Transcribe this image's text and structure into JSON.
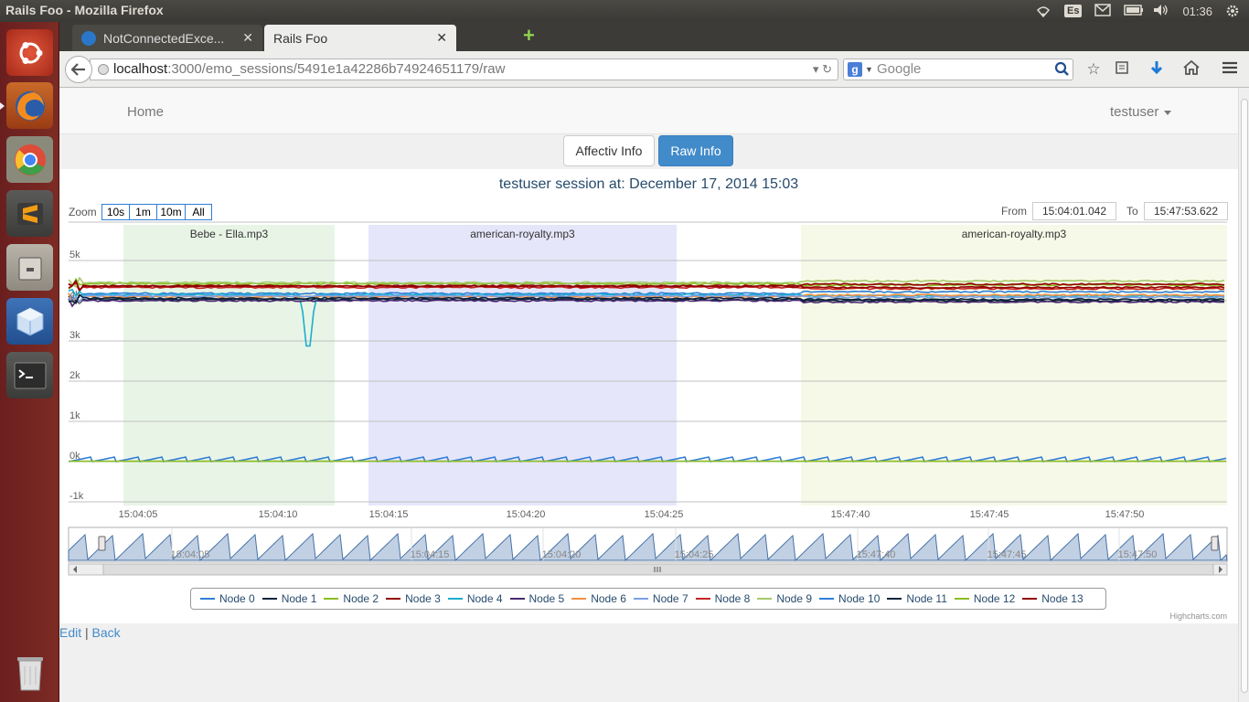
{
  "window": {
    "title": "Rails Foo - Mozilla Firefox"
  },
  "tray": {
    "keyboard": "Es",
    "clock": "01:36"
  },
  "launcher": {
    "items": [
      {
        "name": "ubuntu-dash-icon"
      },
      {
        "name": "firefox-icon"
      },
      {
        "name": "chrome-icon"
      },
      {
        "name": "sublime-text-icon"
      },
      {
        "name": "file-cabinet-icon"
      },
      {
        "name": "virtualbox-icon"
      },
      {
        "name": "terminal-icon"
      },
      {
        "name": "trash-icon"
      }
    ]
  },
  "tabs": [
    {
      "label": "NotConnectedExce...",
      "active": false
    },
    {
      "label": "Rails Foo",
      "active": true
    }
  ],
  "urlbar": {
    "host": "localhost",
    "path": ":3000/emo_sessions/5491e1a42286b74924651179/raw"
  },
  "search": {
    "placeholder": "Google"
  },
  "app": {
    "home_label": "Home",
    "user_label": "testuser",
    "tab_affectiv": "Affectiv Info",
    "tab_raw": "Raw Info",
    "title": "testuser session at: December 17, 2014 15:03",
    "zoom_label": "Zoom",
    "zoom_buttons": [
      "10s",
      "1m",
      "10m",
      "All"
    ],
    "from_label": "From",
    "from_value": "15:04:01.042",
    "to_label": "To",
    "to_value": "15:47:53.622",
    "credits": "Highcharts.com",
    "edit_label": "Edit",
    "separator": "|",
    "back_label": "Back"
  },
  "chart_data": {
    "type": "line",
    "yaxis_ticks": [
      "5k",
      "4k",
      "3k",
      "2k",
      "1k",
      "0k",
      "-1k"
    ],
    "ylim": [
      -1000,
      5000
    ],
    "xaxis_ticks": [
      "15:04:05",
      "15:04:10",
      "15:04:15",
      "15:04:20",
      "15:04:25",
      "15:47:40",
      "15:47:45",
      "15:47:50"
    ],
    "navigator_ticks": [
      "15:04:05",
      "15:04:15",
      "15:04:20",
      "15:04:25",
      "15:47:40",
      "15:47:45",
      "15:47:50"
    ],
    "plot_bands": [
      {
        "label": "Bebe - Ella.mp3",
        "color": "#e8f5e6"
      },
      {
        "label": "american-royalty.mp3",
        "color": "#e6e6fa"
      },
      {
        "label": "american-royalty.mp3",
        "color": "#f7f9e8"
      }
    ],
    "series": [
      {
        "name": "Node 0",
        "color": "#2f7ed8",
        "level": 4180
      },
      {
        "name": "Node 1",
        "color": "#0d233a",
        "level": 4030
      },
      {
        "name": "Node 2",
        "color": "#8bbc21",
        "level": 4420
      },
      {
        "name": "Node 3",
        "color": "#910000",
        "level": 4370
      },
      {
        "name": "Node 4",
        "color": "#1aadce",
        "level": 4150
      },
      {
        "name": "Node 5",
        "color": "#492970",
        "level": 4000
      },
      {
        "name": "Node 6",
        "color": "#f28f43",
        "level": 4100
      },
      {
        "name": "Node 7",
        "color": "#77a1e5",
        "level": 4120
      },
      {
        "name": "Node 8",
        "color": "#c42525",
        "level": 4330
      },
      {
        "name": "Node 9",
        "color": "#a6c96a",
        "level": 4450
      },
      {
        "name": "Node 10",
        "color": "#2f7ed8",
        "level": 0
      },
      {
        "name": "Node 11",
        "color": "#0d233a",
        "level": 4060
      },
      {
        "name": "Node 12",
        "color": "#8bbc21",
        "level": 0
      },
      {
        "name": "Node 13",
        "color": "#910000",
        "level": 4360
      }
    ]
  }
}
